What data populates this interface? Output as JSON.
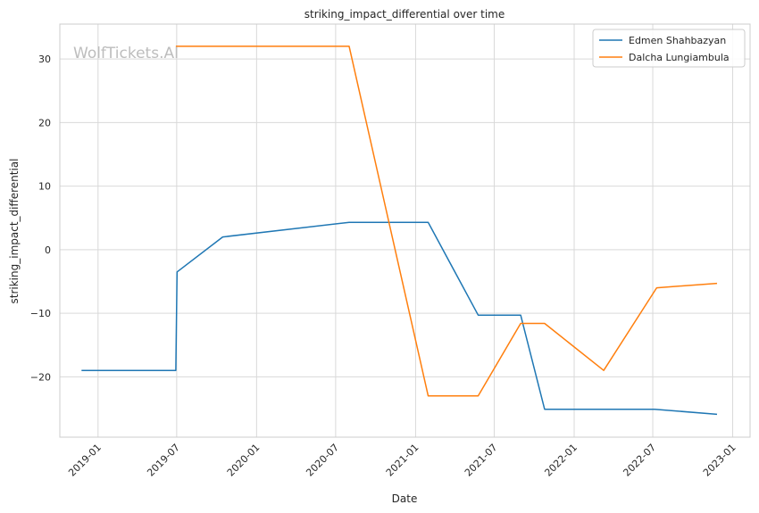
{
  "chart_data": {
    "type": "line",
    "title": "striking_impact_differential over time",
    "xlabel": "Date",
    "ylabel": "striking_impact_differential",
    "watermark": "WolfTickets.AI",
    "xlim": [
      "2018-10-05",
      "2023-02-10"
    ],
    "ylim": [
      -29.5,
      35.5
    ],
    "x_ticks": [
      "2019-01-01",
      "2019-07-01",
      "2020-01-01",
      "2020-07-01",
      "2021-01-01",
      "2021-07-01",
      "2022-01-01",
      "2022-07-01",
      "2023-01-01"
    ],
    "x_tick_labels": [
      "2019-01",
      "2019-07",
      "2020-01",
      "2020-07",
      "2021-01",
      "2021-07",
      "2022-01",
      "2022-07",
      "2023-01"
    ],
    "y_ticks": [
      -20,
      -10,
      0,
      10,
      20,
      30
    ],
    "y_tick_labels": [
      "−20",
      "−10",
      "0",
      "10",
      "20",
      "30"
    ],
    "grid": true,
    "legend_position": "top-right",
    "series": [
      {
        "name": "Edmen Shahbazyan",
        "color": "#1f77b4",
        "points": [
          [
            "2018-11-24",
            -19
          ],
          [
            "2019-06-29",
            -19
          ],
          [
            "2019-07-02",
            -3.5
          ],
          [
            "2019-10-15",
            2
          ],
          [
            "2020-08-01",
            4.3
          ],
          [
            "2021-01-30",
            4.3
          ],
          [
            "2021-05-25",
            -10.3
          ],
          [
            "2021-08-31",
            -10.3
          ],
          [
            "2021-10-25",
            -25.1
          ],
          [
            "2022-07-05",
            -25.1
          ],
          [
            "2022-11-26",
            -25.9
          ]
        ]
      },
      {
        "name": "Dalcha Lungiambula",
        "color": "#ff7f0e",
        "points": [
          [
            "2019-06-29",
            32
          ],
          [
            "2020-08-01",
            32
          ],
          [
            "2021-01-30",
            -23
          ],
          [
            "2021-05-25",
            -23
          ],
          [
            "2021-08-31",
            -11.6
          ],
          [
            "2021-10-25",
            -11.6
          ],
          [
            "2022-03-10",
            -19
          ],
          [
            "2022-07-10",
            -6
          ],
          [
            "2022-11-26",
            -5.3
          ]
        ]
      }
    ]
  }
}
